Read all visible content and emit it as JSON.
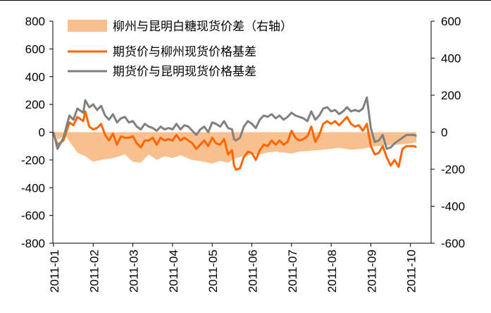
{
  "chart_data": {
    "type": "line",
    "title": "",
    "xlabel": "",
    "ylabel": "",
    "ylim": [
      -800,
      800
    ],
    "y2lim": [
      -600,
      600
    ],
    "y_ticks": [
      800,
      600,
      400,
      200,
      0,
      -200,
      -400,
      -600,
      -800
    ],
    "y2_ticks": [
      600,
      400,
      200,
      0,
      -200,
      -400,
      -600
    ],
    "x_ticks": [
      "2011-01",
      "2011-02",
      "2011-03",
      "2011-04",
      "2011-05",
      "2011-06",
      "2011-07",
      "2011-08",
      "2011-09",
      "2011-10"
    ],
    "legend_position": "top",
    "series": [
      {
        "name": "柳州与昆明白糖现货价差（右轴）",
        "kind": "area",
        "axis": "right",
        "color": "#F9C08F",
        "x": [
          0.0,
          0.1,
          0.3,
          0.6,
          0.8,
          1.0,
          1.2,
          1.5,
          1.8,
          2.0,
          2.2,
          2.4,
          2.6,
          2.8,
          3.0,
          3.2,
          3.5,
          3.8,
          4.0,
          4.2,
          4.4,
          4.6,
          4.8,
          5.0,
          5.2,
          5.4,
          5.6,
          5.8,
          6.0,
          6.2,
          6.5,
          6.8,
          7.0,
          7.2,
          7.5,
          7.8,
          8.0,
          8.2,
          8.5,
          8.8,
          9.0,
          9.15
        ],
        "values": [
          10,
          -40,
          -20,
          -110,
          -130,
          -160,
          -150,
          -140,
          -120,
          -160,
          -165,
          -120,
          -150,
          -130,
          -140,
          -125,
          -150,
          -160,
          -170,
          -155,
          -165,
          -140,
          -130,
          -120,
          -120,
          -110,
          -105,
          -110,
          -115,
          -105,
          -100,
          -95,
          -90,
          -85,
          -95,
          -90,
          -80,
          -75,
          -70,
          -65,
          -60,
          -55
        ]
      },
      {
        "name": "期货价与柳州现货价格基差",
        "kind": "line",
        "axis": "left",
        "color": "#FF6600",
        "x": [
          0.0,
          0.1,
          0.25,
          0.4,
          0.5,
          0.6,
          0.75,
          0.8,
          0.9,
          1.0,
          1.1,
          1.2,
          1.3,
          1.4,
          1.5,
          1.6,
          1.7,
          1.8,
          1.9,
          2.0,
          2.1,
          2.2,
          2.3,
          2.4,
          2.5,
          2.6,
          2.7,
          2.8,
          2.9,
          3.0,
          3.1,
          3.2,
          3.3,
          3.4,
          3.5,
          3.6,
          3.7,
          3.8,
          3.9,
          4.0,
          4.1,
          4.2,
          4.3,
          4.4,
          4.5,
          4.55,
          4.6,
          4.7,
          4.8,
          4.9,
          5.0,
          5.1,
          5.2,
          5.3,
          5.4,
          5.5,
          5.6,
          5.7,
          5.8,
          5.9,
          6.0,
          6.1,
          6.2,
          6.3,
          6.4,
          6.5,
          6.6,
          6.7,
          6.8,
          6.9,
          7.0,
          7.1,
          7.2,
          7.3,
          7.4,
          7.5,
          7.6,
          7.7,
          7.8,
          7.9,
          8.0,
          8.1,
          8.2,
          8.3,
          8.4,
          8.5,
          8.6,
          8.7,
          8.8,
          8.9,
          9.0,
          9.1,
          9.15
        ],
        "values": [
          -10,
          -90,
          -60,
          70,
          50,
          110,
          80,
          150,
          40,
          20,
          30,
          60,
          -20,
          -60,
          -10,
          -90,
          -30,
          -40,
          -40,
          -30,
          -80,
          -110,
          -60,
          -60,
          -40,
          -90,
          -40,
          -60,
          -50,
          -60,
          -20,
          -60,
          -40,
          -60,
          -80,
          -120,
          -90,
          -60,
          -100,
          -40,
          -80,
          -90,
          -50,
          -160,
          -130,
          -240,
          -270,
          -260,
          -180,
          -140,
          -150,
          -200,
          -130,
          -90,
          -100,
          -60,
          -90,
          -60,
          -90,
          -70,
          10,
          -40,
          -60,
          -50,
          -30,
          40,
          -70,
          -20,
          60,
          80,
          60,
          80,
          50,
          80,
          110,
          60,
          40,
          50,
          10,
          60,
          -100,
          -160,
          -150,
          -100,
          -180,
          -240,
          -200,
          -250,
          -120,
          -100,
          -100,
          -100,
          -110
        ]
      },
      {
        "name": "期货价与昆明现货价格基差",
        "kind": "line",
        "axis": "left",
        "color": "#808080",
        "x": [
          0.0,
          0.1,
          0.25,
          0.4,
          0.5,
          0.6,
          0.75,
          0.8,
          0.9,
          1.0,
          1.1,
          1.2,
          1.3,
          1.4,
          1.5,
          1.6,
          1.7,
          1.8,
          1.9,
          2.0,
          2.1,
          2.2,
          2.3,
          2.4,
          2.5,
          2.6,
          2.7,
          2.8,
          2.9,
          3.0,
          3.1,
          3.2,
          3.3,
          3.4,
          3.5,
          3.6,
          3.7,
          3.8,
          3.9,
          4.0,
          4.1,
          4.2,
          4.3,
          4.4,
          4.5,
          4.55,
          4.6,
          4.7,
          4.8,
          4.9,
          5.0,
          5.1,
          5.2,
          5.3,
          5.4,
          5.5,
          5.6,
          5.7,
          5.8,
          5.9,
          6.0,
          6.1,
          6.2,
          6.3,
          6.4,
          6.5,
          6.6,
          6.7,
          6.8,
          6.9,
          7.0,
          7.1,
          7.2,
          7.3,
          7.4,
          7.5,
          7.6,
          7.7,
          7.8,
          7.9,
          8.0,
          8.1,
          8.2,
          8.3,
          8.4,
          8.5,
          8.6,
          8.7,
          8.8,
          8.9,
          9.0,
          9.1,
          9.15
        ],
        "values": [
          0,
          -120,
          -40,
          120,
          90,
          170,
          140,
          230,
          180,
          200,
          160,
          190,
          120,
          90,
          130,
          70,
          100,
          110,
          70,
          80,
          40,
          20,
          60,
          40,
          30,
          10,
          40,
          20,
          30,
          20,
          60,
          20,
          50,
          40,
          10,
          -20,
          20,
          40,
          0,
          70,
          60,
          40,
          80,
          30,
          20,
          -50,
          -60,
          -40,
          40,
          80,
          60,
          30,
          90,
          120,
          110,
          130,
          100,
          120,
          90,
          110,
          140,
          120,
          110,
          100,
          80,
          150,
          90,
          120,
          170,
          180,
          150,
          160,
          130,
          150,
          180,
          150,
          160,
          150,
          170,
          250,
          30,
          -70,
          -60,
          -20,
          -120,
          -110,
          -80,
          -60,
          -40,
          -20,
          -20,
          -20,
          -30
        ]
      }
    ]
  }
}
